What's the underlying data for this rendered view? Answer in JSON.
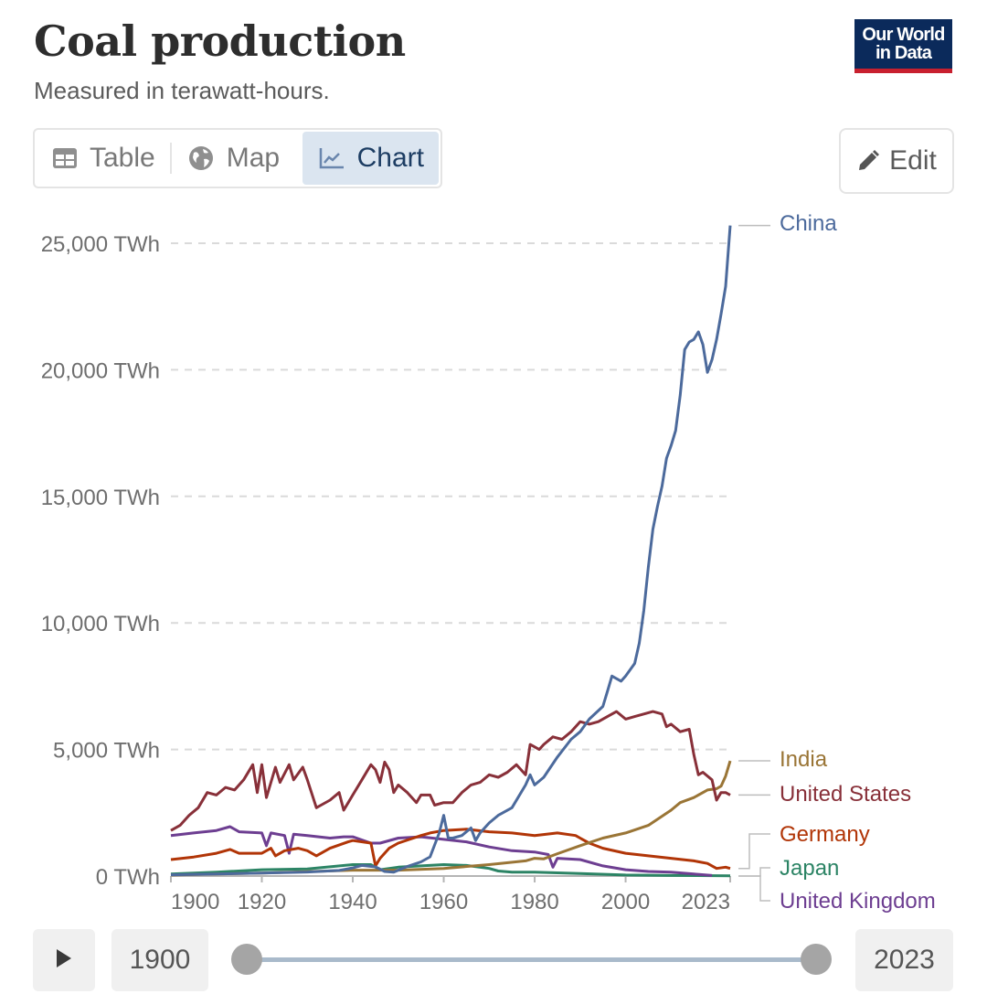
{
  "header": {
    "title": "Coal production",
    "subtitle": "Measured in terawatt-hours.",
    "logo_line1": "Our World",
    "logo_line2": "in Data"
  },
  "tabs": [
    {
      "label": "Table",
      "icon": "table-icon",
      "active": false
    },
    {
      "label": "Map",
      "icon": "globe-icon",
      "active": false
    },
    {
      "label": "Chart",
      "icon": "line-chart-icon",
      "active": true
    }
  ],
  "edit_button": {
    "label": "Edit",
    "icon": "pencil-icon"
  },
  "timeline": {
    "start_year": "1900",
    "end_year": "2023",
    "play_icon": "play-icon",
    "start_fraction": 0,
    "end_fraction": 1
  },
  "colors": {
    "China": "#4c6a9c",
    "India": "#9a7536",
    "United States": "#883039",
    "Germany": "#b13507",
    "Japan": "#2c8465",
    "United Kingdom": "#6d3e91"
  },
  "chart_data": {
    "type": "line",
    "title": "Coal production",
    "subtitle": "Measured in terawatt-hours.",
    "xlabel": "",
    "ylabel": "",
    "xlim": [
      1900,
      2023
    ],
    "ylim": [
      0,
      25000
    ],
    "grid": "horizontal dashed",
    "legend": "right (inline end labels)",
    "y_ticks": [
      0,
      5000,
      10000,
      15000,
      20000,
      25000
    ],
    "y_tick_labels": [
      "0 TWh",
      "5,000 TWh",
      "10,000 TWh",
      "15,000 TWh",
      "20,000 TWh",
      "25,000 TWh"
    ],
    "x_ticks": [
      1900,
      1920,
      1940,
      1960,
      1980,
      2000,
      2023
    ],
    "x_tick_labels": [
      "1900",
      "1920",
      "1940",
      "1960",
      "1980",
      "2000",
      "2023"
    ],
    "series": [
      {
        "name": "China",
        "x": [
          1900,
          1910,
          1920,
          1930,
          1937,
          1940,
          1942,
          1945,
          1947,
          1949,
          1952,
          1955,
          1957,
          1959,
          1960,
          1961,
          1962,
          1964,
          1966,
          1967,
          1968,
          1970,
          1972,
          1975,
          1978,
          1979,
          1980,
          1982,
          1985,
          1988,
          1990,
          1992,
          1995,
          1996,
          1997,
          1999,
          2000,
          2002,
          2003,
          2004,
          2005,
          2006,
          2007,
          2008,
          2009,
          2010,
          2011,
          2012,
          2013,
          2014,
          2015,
          2016,
          2017,
          2018,
          2019,
          2020,
          2021,
          2022,
          2023
        ],
        "values": [
          50,
          80,
          120,
          160,
          220,
          320,
          420,
          360,
          180,
          150,
          380,
          560,
          760,
          1700,
          2400,
          1500,
          1500,
          1600,
          1900,
          1400,
          1700,
          2100,
          2400,
          2700,
          3600,
          4000,
          3600,
          3900,
          4700,
          5400,
          5700,
          6200,
          6700,
          7300,
          7900,
          7700,
          7900,
          8400,
          9200,
          10500,
          12200,
          13700,
          14600,
          15400,
          16500,
          17000,
          17600,
          19000,
          20800,
          21100,
          21200,
          21500,
          21000,
          19900,
          20400,
          21200,
          22200,
          23300,
          25700
        ]
      },
      {
        "name": "India",
        "x": [
          1900,
          1920,
          1940,
          1950,
          1960,
          1970,
          1978,
          1980,
          1982,
          1985,
          1990,
          1995,
          2000,
          2005,
          2010,
          2012,
          2015,
          2018,
          2020,
          2021,
          2022,
          2023
        ],
        "values": [
          40,
          120,
          230,
          230,
          300,
          450,
          600,
          700,
          680,
          880,
          1200,
          1500,
          1700,
          2000,
          2600,
          2900,
          3100,
          3400,
          3450,
          3550,
          3950,
          4550
        ]
      },
      {
        "name": "United States",
        "x": [
          1900,
          1902,
          1904,
          1906,
          1908,
          1910,
          1912,
          1914,
          1916,
          1918,
          1919,
          1920,
          1921,
          1923,
          1924,
          1926,
          1927,
          1929,
          1930,
          1932,
          1933,
          1935,
          1937,
          1938,
          1940,
          1942,
          1944,
          1945,
          1946,
          1947,
          1948,
          1949,
          1950,
          1952,
          1954,
          1955,
          1957,
          1958,
          1960,
          1962,
          1964,
          1966,
          1968,
          1970,
          1972,
          1974,
          1976,
          1978,
          1979,
          1981,
          1982,
          1984,
          1986,
          1988,
          1990,
          1992,
          1994,
          1996,
          1998,
          2000,
          2002,
          2004,
          2006,
          2008,
          2009,
          2010,
          2012,
          2014,
          2015,
          2016,
          2017,
          2019,
          2020,
          2021,
          2022,
          2023
        ],
        "values": [
          1800,
          2000,
          2400,
          2700,
          3300,
          3200,
          3500,
          3400,
          3800,
          4400,
          3300,
          4400,
          3100,
          4300,
          3700,
          4400,
          3800,
          4300,
          3800,
          2700,
          2800,
          3000,
          3300,
          2600,
          3200,
          3800,
          4400,
          4200,
          3700,
          4500,
          4200,
          3300,
          3600,
          3300,
          2900,
          3200,
          3200,
          2800,
          2900,
          2900,
          3300,
          3600,
          3700,
          4000,
          3900,
          4100,
          4400,
          4000,
          5200,
          5000,
          5200,
          5500,
          5400,
          5700,
          6100,
          6000,
          6100,
          6300,
          6500,
          6200,
          6300,
          6400,
          6500,
          6400,
          5900,
          6000,
          5700,
          5800,
          4800,
          4000,
          4100,
          3800,
          3000,
          3300,
          3300,
          3200
        ]
      },
      {
        "name": "Germany",
        "x": [
          1900,
          1905,
          1910,
          1913,
          1915,
          1920,
          1922,
          1923,
          1925,
          1928,
          1930,
          1932,
          1935,
          1939,
          1940,
          1944,
          1945,
          1946,
          1948,
          1950,
          1955,
          1957,
          1960,
          1965,
          1970,
          1975,
          1980,
          1985,
          1989,
          1990,
          1992,
          1995,
          2000,
          2005,
          2010,
          2015,
          2018,
          2019,
          2020,
          2022,
          2023
        ],
        "values": [
          650,
          750,
          900,
          1050,
          900,
          900,
          1100,
          800,
          1000,
          1100,
          1000,
          800,
          1100,
          1350,
          1400,
          1300,
          400,
          700,
          1100,
          1300,
          1600,
          1700,
          1800,
          1850,
          1750,
          1700,
          1600,
          1700,
          1600,
          1500,
          1300,
          1100,
          900,
          800,
          700,
          600,
          500,
          400,
          300,
          350,
          300
        ]
      },
      {
        "name": "Japan",
        "x": [
          1900,
          1910,
          1920,
          1930,
          1940,
          1944,
          1946,
          1950,
          1955,
          1960,
          1965,
          1970,
          1972,
          1975,
          1980,
          1990,
          2000,
          2010,
          2023
        ],
        "values": [
          80,
          150,
          250,
          280,
          450,
          450,
          250,
          350,
          400,
          450,
          420,
          300,
          200,
          150,
          150,
          100,
          40,
          20,
          10
        ]
      },
      {
        "name": "United Kingdom",
        "x": [
          1900,
          1905,
          1910,
          1913,
          1915,
          1920,
          1921,
          1922,
          1925,
          1926,
          1927,
          1930,
          1935,
          1938,
          1940,
          1944,
          1946,
          1950,
          1955,
          1960,
          1965,
          1970,
          1975,
          1980,
          1983,
          1984,
          1985,
          1990,
          1995,
          2000,
          2005,
          2010,
          2015,
          2019
        ],
        "values": [
          1600,
          1700,
          1800,
          1950,
          1750,
          1700,
          1200,
          1700,
          1600,
          900,
          1650,
          1600,
          1500,
          1550,
          1550,
          1300,
          1300,
          1500,
          1550,
          1450,
          1350,
          1150,
          1000,
          950,
          850,
          350,
          700,
          650,
          400,
          250,
          180,
          150,
          80,
          20
        ]
      }
    ]
  }
}
